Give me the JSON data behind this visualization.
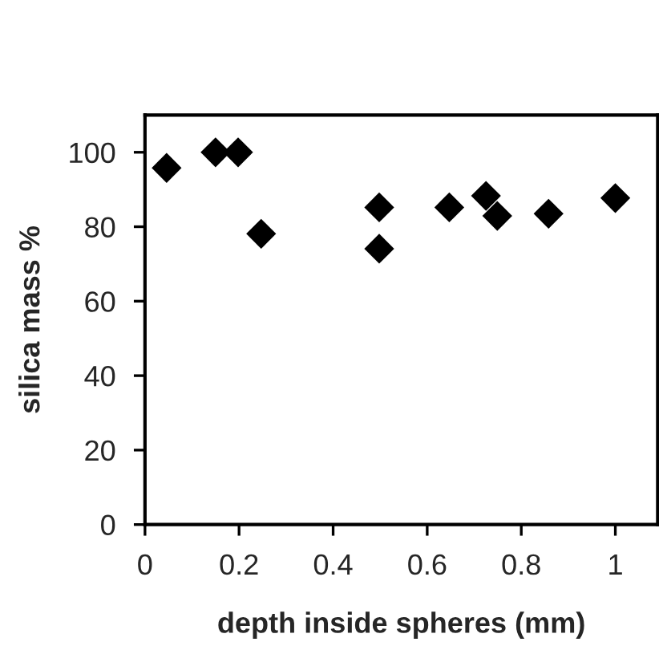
{
  "chart_data": {
    "type": "scatter",
    "xlabel": "depth inside spheres (mm)",
    "ylabel": "silica mass %",
    "x": [
      0.046,
      0.15,
      0.198,
      0.247,
      0.498,
      0.498,
      0.647,
      0.725,
      0.749,
      0.858,
      1.0
    ],
    "series": [
      {
        "color": "#000000",
        "values": [
          95.8,
          100,
          100,
          78.1,
          85.2,
          74.1,
          85.2,
          88.3,
          82.9,
          83.5,
          87.7
        ]
      }
    ],
    "xlim": [
      0,
      1.09
    ],
    "xticks": [
      0,
      0.2,
      0.4,
      0.6,
      0.8,
      1
    ],
    "ylim": [
      0,
      110
    ],
    "yticks": [
      0,
      20,
      40,
      60,
      80,
      100
    ],
    "grid": false,
    "legend": false,
    "marker": "diamond"
  }
}
